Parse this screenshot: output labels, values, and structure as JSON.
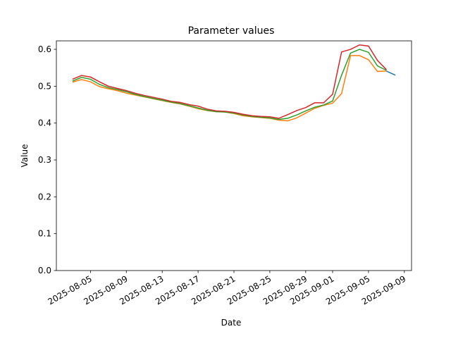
{
  "chart_data": {
    "type": "line",
    "title": "Parameter values",
    "x_label": "Date",
    "y_label": "Value",
    "x": [
      "2025-08-03",
      "2025-08-04",
      "2025-08-05",
      "2025-08-06",
      "2025-08-07",
      "2025-08-08",
      "2025-08-09",
      "2025-08-10",
      "2025-08-11",
      "2025-08-12",
      "2025-08-13",
      "2025-08-14",
      "2025-08-15",
      "2025-08-16",
      "2025-08-17",
      "2025-08-18",
      "2025-08-19",
      "2025-08-20",
      "2025-08-21",
      "2025-08-22",
      "2025-08-23",
      "2025-08-24",
      "2025-08-25",
      "2025-08-26",
      "2025-08-27",
      "2025-08-28",
      "2025-08-29",
      "2025-08-30",
      "2025-08-31",
      "2025-09-01",
      "2025-09-02",
      "2025-09-03",
      "2025-09-04",
      "2025-09-05",
      "2025-09-06",
      "2025-09-07",
      "2025-09-08"
    ],
    "series": [
      {
        "color": "#1f77b4",
        "values": [
          null,
          null,
          null,
          null,
          null,
          null,
          null,
          null,
          null,
          null,
          null,
          null,
          null,
          null,
          null,
          null,
          null,
          null,
          null,
          null,
          null,
          null,
          null,
          null,
          null,
          null,
          null,
          null,
          null,
          null,
          null,
          null,
          null,
          null,
          null,
          0.541,
          0.53
        ]
      },
      {
        "color": "#ff7f0e",
        "values": [
          0.511,
          0.518,
          0.512,
          0.499,
          0.493,
          0.488,
          0.481,
          0.476,
          0.471,
          0.466,
          0.461,
          0.456,
          0.452,
          0.446,
          0.439,
          0.434,
          0.431,
          0.43,
          0.426,
          0.42,
          0.417,
          0.415,
          0.413,
          0.408,
          0.406,
          0.414,
          0.427,
          0.44,
          0.448,
          0.454,
          0.48,
          0.583,
          0.583,
          0.572,
          0.54,
          0.541,
          null
        ]
      },
      {
        "color": "#2ca02c",
        "values": [
          0.514,
          0.524,
          0.519,
          0.505,
          0.496,
          0.491,
          0.485,
          0.478,
          0.472,
          0.467,
          0.462,
          0.457,
          0.453,
          0.447,
          0.441,
          0.435,
          0.431,
          0.43,
          0.427,
          0.422,
          0.418,
          0.416,
          0.414,
          0.41,
          0.413,
          0.422,
          0.433,
          0.443,
          0.449,
          0.46,
          0.53,
          0.59,
          0.6,
          0.592,
          0.555,
          0.543,
          null
        ]
      },
      {
        "color": "#d62728",
        "values": [
          0.519,
          0.529,
          0.525,
          0.512,
          0.5,
          0.494,
          0.488,
          0.481,
          0.475,
          0.47,
          0.465,
          0.459,
          0.456,
          0.45,
          0.446,
          0.438,
          0.433,
          0.432,
          0.429,
          0.424,
          0.42,
          0.418,
          0.417,
          0.413,
          0.423,
          0.434,
          0.442,
          0.455,
          0.455,
          0.478,
          0.593,
          0.6,
          0.612,
          0.609,
          0.57,
          0.545,
          null
        ]
      }
    ],
    "xlim": [
      "2025-08-01T04:48:00Z",
      "2025-09-09T19:12:00Z"
    ],
    "xticks": [
      "2025-08-05",
      "2025-08-09",
      "2025-08-13",
      "2025-08-17",
      "2025-08-21",
      "2025-08-25",
      "2025-08-29",
      "2025-09-01",
      "2025-09-05",
      "2025-09-09"
    ],
    "ylim": [
      0,
      0.623
    ],
    "yticks": [
      {
        "value": 0,
        "label": "0.0"
      },
      0.1,
      0.2,
      0.3,
      0.4,
      0.5,
      0.6
    ]
  }
}
